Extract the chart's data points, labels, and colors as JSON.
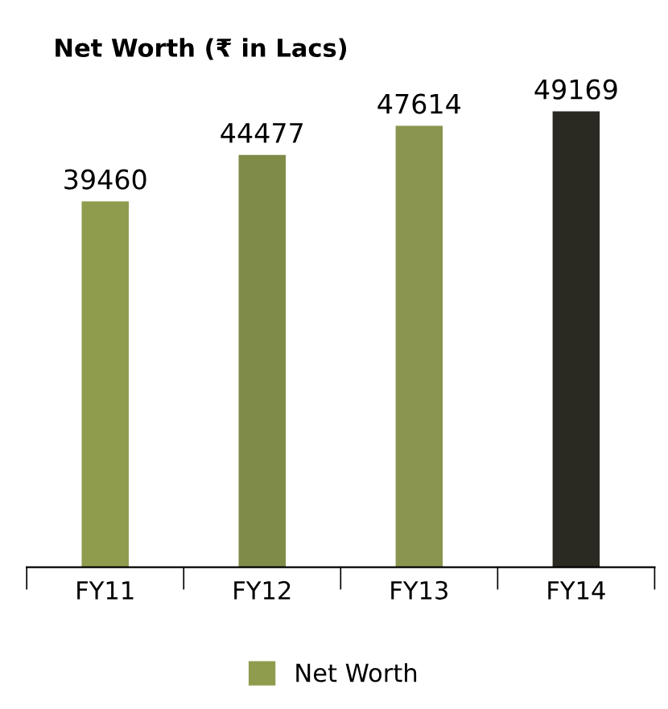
{
  "chart_data": {
    "type": "bar",
    "title": "Net Worth (₹ in Lacs)",
    "categories": [
      "FY11",
      "FY12",
      "FY13",
      "FY14"
    ],
    "series": [
      {
        "name": "Net Worth",
        "color": "#8f9c4e",
        "colors": [
          "#8f9c4e",
          "#7f8c48",
          "#8a9650",
          "#2b2a22"
        ],
        "values": [
          39460,
          44477,
          47614,
          49169
        ]
      }
    ],
    "data_labels": true,
    "legend": "bottom",
    "grid": false
  }
}
